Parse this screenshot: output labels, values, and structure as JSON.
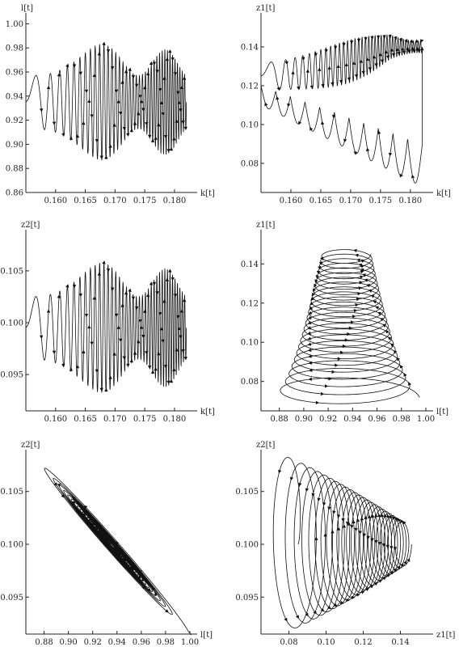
{
  "chart_data": [
    {
      "type": "line",
      "xlabel": "k[t]",
      "ylabel": "l[t]",
      "xlim": [
        0.155,
        0.183
      ],
      "ylim": [
        0.86,
        1.005
      ],
      "xticks": [
        "0.160",
        "0.165",
        "0.170",
        "0.175",
        "0.180"
      ],
      "yticks": [
        "0.86",
        "0.88",
        "0.90",
        "0.92",
        "0.94",
        "0.96",
        "0.98",
        "1.00"
      ],
      "xtick_values": [
        0.16,
        0.165,
        0.17,
        0.175,
        0.18
      ],
      "ytick_values": [
        0.86,
        0.88,
        0.9,
        0.92,
        0.94,
        0.96,
        0.98,
        1.0
      ],
      "trajectory": {
        "x_start": 0.155,
        "x_end": 0.182,
        "y_center": 0.935,
        "y_amp_small": 0.022,
        "y_amp_large": 0.066,
        "cycles": 38
      }
    },
    {
      "type": "line",
      "xlabel": "k[t]",
      "ylabel": "z1[t]",
      "xlim": [
        0.155,
        0.183
      ],
      "ylim": [
        0.065,
        0.155
      ],
      "xticks": [
        "0.160",
        "0.165",
        "0.170",
        "0.175",
        "0.180"
      ],
      "yticks": [
        "0.08",
        "0.10",
        "0.12",
        "0.14"
      ],
      "xtick_values": [
        0.16,
        0.165,
        0.17,
        0.175,
        0.18
      ],
      "ytick_values": [
        0.08,
        0.1,
        0.12,
        0.14
      ],
      "trajectory": {
        "x_start": 0.155,
        "x_end": 0.182,
        "y_center": 0.14,
        "y_low": 0.067,
        "cycles": 38
      }
    },
    {
      "type": "line",
      "xlabel": "k[t]",
      "ylabel": "z2[t]",
      "xlim": [
        0.155,
        0.183
      ],
      "ylim": [
        0.0915,
        0.1085
      ],
      "xticks": [
        "0.160",
        "0.165",
        "0.170",
        "0.175",
        "0.180"
      ],
      "yticks": [
        "0.095",
        "0.100",
        "0.105"
      ],
      "xtick_values": [
        0.16,
        0.165,
        0.17,
        0.175,
        0.18
      ],
      "ytick_values": [
        0.095,
        0.1,
        0.105
      ],
      "trajectory": {
        "x_start": 0.155,
        "x_end": 0.182,
        "y_center": 0.0995,
        "y_amp_small": 0.003,
        "y_amp_large": 0.0085,
        "cycles": 38
      }
    },
    {
      "type": "line",
      "xlabel": "l[t]",
      "ylabel": "z1[t]",
      "xlim": [
        0.865,
        1.002
      ],
      "ylim": [
        0.065,
        0.155
      ],
      "xticks": [
        "0.88",
        "0.90",
        "0.92",
        "0.94",
        "0.96",
        "0.98",
        "1.00"
      ],
      "yticks": [
        "0.08",
        "0.10",
        "0.12",
        "0.14"
      ],
      "xtick_values": [
        0.88,
        0.9,
        0.92,
        0.94,
        0.96,
        0.98,
        1.0
      ],
      "ytick_values": [
        0.08,
        0.1,
        0.12,
        0.14
      ],
      "trajectory": {
        "x_center": 0.935,
        "x_amp_start": 0.06,
        "x_amp_end": 0.02,
        "y_start": 0.072,
        "y_end": 0.145,
        "y_amp_start": 0.008,
        "y_amp_end": 0.004,
        "turns": 24
      }
    },
    {
      "type": "line",
      "xlabel": "l[t]",
      "ylabel": "z2[t]",
      "xlim": [
        0.865,
        1.002
      ],
      "ylim": [
        0.0915,
        0.1085
      ],
      "xticks": [
        "0.88",
        "0.90",
        "0.92",
        "0.94",
        "0.96",
        "0.98",
        "1.00"
      ],
      "yticks": [
        "0.095",
        "0.100",
        "0.105"
      ],
      "xtick_values": [
        0.88,
        0.9,
        0.92,
        0.94,
        0.96,
        0.98,
        1.0
      ],
      "ytick_values": [
        0.095,
        0.1,
        0.105
      ],
      "trajectory": {
        "x_center": 0.935,
        "y_center": 0.1,
        "x_amp_start": 0.066,
        "x_amp_end": 0.004,
        "y_amp_start": 0.0086,
        "y_amp_end": 0.0005,
        "turns": 22
      }
    },
    {
      "type": "line",
      "xlabel": "z1[t]",
      "ylabel": "z2[t]",
      "xlim": [
        0.065,
        0.155
      ],
      "ylim": [
        0.0915,
        0.1085
      ],
      "xticks": [
        "0.08",
        "0.10",
        "0.12",
        "0.14"
      ],
      "yticks": [
        "0.095",
        "0.100",
        "0.105"
      ],
      "xtick_values": [
        0.08,
        0.1,
        0.12,
        0.14
      ],
      "ytick_values": [
        0.095,
        0.1,
        0.105
      ],
      "trajectory": {
        "x_start": 0.075,
        "x_end": 0.142,
        "y_center": 0.1,
        "x_amp_start": 0.01,
        "x_amp_end": 0.004,
        "y_amp_start": 0.0085,
        "y_amp_end": 0.002,
        "turns": 24
      }
    }
  ]
}
